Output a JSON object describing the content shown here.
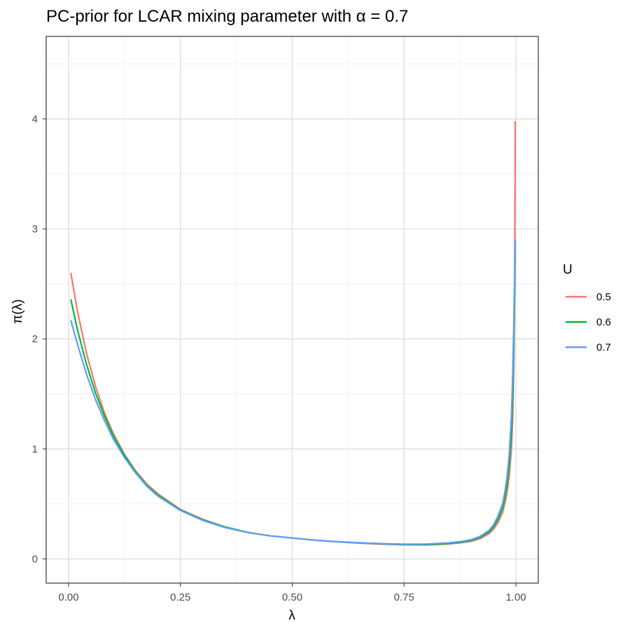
{
  "chart_data": {
    "type": "line",
    "title": "PC-prior for LCAR mixing parameter with  α = 0.7",
    "xlabel": "λ",
    "ylabel": "π(λ)",
    "xlim": [
      -0.05,
      1.05
    ],
    "ylim": [
      -0.22,
      4.75
    ],
    "x_ticks": [
      0.0,
      0.25,
      0.5,
      0.75,
      1.0
    ],
    "x_tick_labels": [
      "0.00",
      "0.25",
      "0.50",
      "0.75",
      "1.00"
    ],
    "y_ticks": [
      0,
      1,
      2,
      3,
      4
    ],
    "y_tick_labels": [
      "0",
      "1",
      "2",
      "3",
      "4"
    ],
    "grid": true,
    "legend_title": "U",
    "legend_position": "right",
    "x": [
      0.005,
      0.02,
      0.04,
      0.06,
      0.08,
      0.1,
      0.125,
      0.15,
      0.175,
      0.2,
      0.25,
      0.3,
      0.35,
      0.4,
      0.45,
      0.5,
      0.55,
      0.6,
      0.65,
      0.7,
      0.75,
      0.8,
      0.85,
      0.88,
      0.9,
      0.92,
      0.94,
      0.95,
      0.96,
      0.97,
      0.975,
      0.98,
      0.985,
      0.99,
      0.993,
      0.995,
      0.997,
      0.9985
    ],
    "series": [
      {
        "name": "0.5",
        "color": "#F8766D",
        "values": [
          2.6,
          2.25,
          1.87,
          1.57,
          1.33,
          1.14,
          0.95,
          0.8,
          0.68,
          0.59,
          0.45,
          0.36,
          0.29,
          0.24,
          0.21,
          0.19,
          0.17,
          0.155,
          0.143,
          0.134,
          0.128,
          0.127,
          0.135,
          0.148,
          0.16,
          0.185,
          0.23,
          0.27,
          0.33,
          0.42,
          0.5,
          0.6,
          0.75,
          1.0,
          1.3,
          1.7,
          2.4,
          3.98
        ]
      },
      {
        "name": "0.6",
        "color": "#00BA38",
        "values": [
          2.36,
          2.08,
          1.77,
          1.51,
          1.3,
          1.12,
          0.94,
          0.79,
          0.67,
          0.58,
          0.445,
          0.355,
          0.29,
          0.242,
          0.21,
          0.19,
          0.17,
          0.156,
          0.145,
          0.137,
          0.131,
          0.131,
          0.14,
          0.153,
          0.167,
          0.195,
          0.245,
          0.29,
          0.36,
          0.46,
          0.55,
          0.67,
          0.85,
          1.15,
          1.5,
          1.9,
          2.4,
          2.85
        ]
      },
      {
        "name": "0.7",
        "color": "#619CFF",
        "values": [
          2.17,
          1.95,
          1.68,
          1.45,
          1.26,
          1.09,
          0.92,
          0.78,
          0.66,
          0.57,
          0.44,
          0.35,
          0.285,
          0.24,
          0.21,
          0.19,
          0.171,
          0.157,
          0.147,
          0.139,
          0.134,
          0.135,
          0.146,
          0.16,
          0.175,
          0.205,
          0.26,
          0.31,
          0.39,
          0.5,
          0.6,
          0.74,
          0.95,
          1.3,
          1.7,
          2.1,
          2.55,
          2.9
        ]
      }
    ]
  }
}
